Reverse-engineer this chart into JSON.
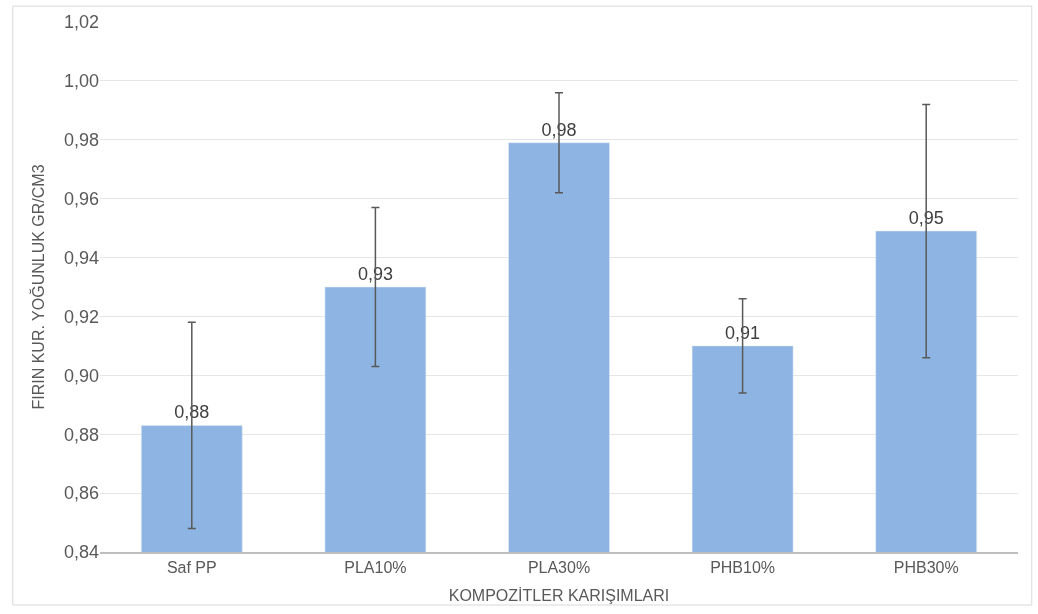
{
  "chart_data": {
    "type": "bar",
    "xlabel": "KOMPOZİTLER KARIŞIMLARI",
    "ylabel": "FIRIN KUR. YOĞUNLUK GR/CM3",
    "categories": [
      "Saf PP",
      "PLA10%",
      "PLA30%",
      "PHB10%",
      "PHB30%"
    ],
    "values": [
      0.883,
      0.93,
      0.979,
      0.91,
      0.949
    ],
    "value_labels": [
      "0,88",
      "0,93",
      "0,98",
      "0,91",
      "0,95"
    ],
    "errors": [
      0.035,
      0.027,
      0.017,
      0.016,
      0.043
    ],
    "color": "#8db4e2",
    "ylim": [
      0.84,
      1.02
    ],
    "yticks": [
      {
        "value": 0.84,
        "label": "0,84"
      },
      {
        "value": 0.86,
        "label": "0,86"
      },
      {
        "value": 0.88,
        "label": "0,88"
      },
      {
        "value": 0.9,
        "label": "0,90"
      },
      {
        "value": 0.92,
        "label": "0,92"
      },
      {
        "value": 0.94,
        "label": "0,94"
      },
      {
        "value": 0.96,
        "label": "0,96"
      },
      {
        "value": 0.98,
        "label": "0,98"
      },
      {
        "value": 1.0,
        "label": "1,00"
      },
      {
        "value": 1.02,
        "label": "1,02"
      }
    ],
    "grid": "y",
    "legend": false
  }
}
